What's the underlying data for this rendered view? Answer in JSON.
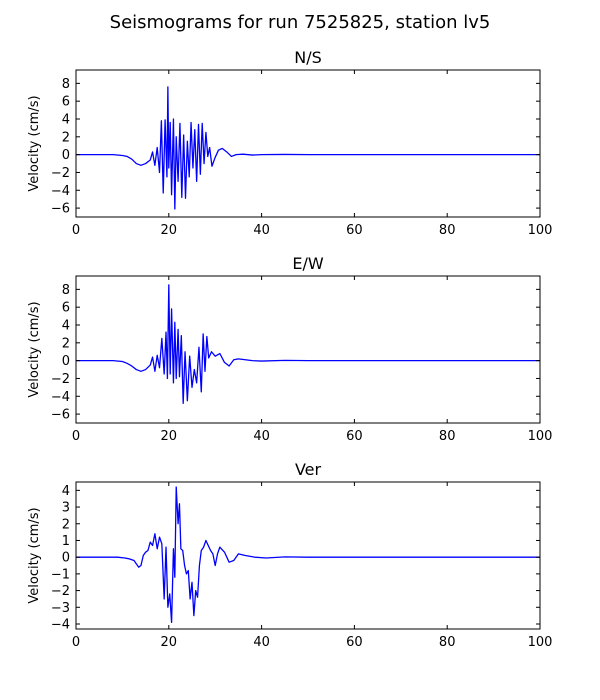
{
  "figure": {
    "suptitle": "Seismograms for run 7525825, station lv5"
  },
  "style": {
    "line_color": "#0000ff",
    "axis_color": "#000000",
    "background": "#ffffff"
  },
  "chart_data": [
    {
      "type": "line",
      "title": "N/S",
      "xlabel": "",
      "ylabel": "Velocity (cm/s)",
      "xlim": [
        0,
        100
      ],
      "ylim": [
        -7,
        9.5
      ],
      "xticks": [
        0,
        20,
        40,
        60,
        80,
        100
      ],
      "yticks": [
        -6,
        -4,
        -2,
        0,
        2,
        4,
        6,
        8
      ],
      "grid": false,
      "series": [
        {
          "x": [
            0,
            8,
            10,
            11,
            12,
            13,
            14,
            15,
            16,
            16.5,
            17,
            17.5,
            18,
            18.4,
            18.8,
            19.2,
            19.6,
            19.8,
            20.0,
            20.3,
            20.6,
            21.0,
            21.3,
            21.6,
            22.0,
            22.4,
            22.8,
            23.2,
            23.6,
            24.0,
            24.4,
            24.8,
            25.2,
            25.6,
            26.0,
            26.4,
            26.8,
            27.2,
            27.6,
            28.0,
            28.4,
            28.8,
            29.3,
            30.0,
            30.7,
            31.5,
            32.5,
            33.5,
            34.5,
            36,
            38,
            40,
            45,
            50,
            100
          ],
          "y": [
            0,
            0,
            -0.1,
            -0.2,
            -0.5,
            -1.0,
            -1.2,
            -1.0,
            -0.6,
            0.3,
            -1.2,
            0.8,
            -2.0,
            3.8,
            -4.3,
            3.9,
            -2.5,
            7.6,
            -1.5,
            3.6,
            -4.5,
            4.0,
            -6.1,
            2.0,
            -3.0,
            3.5,
            -4.8,
            2.2,
            -4.9,
            1.5,
            -2.5,
            3.6,
            -1.5,
            2.8,
            -3.0,
            3.4,
            -2.2,
            3.5,
            -1.0,
            2.5,
            -0.2,
            0.8,
            -1.3,
            -0.3,
            0.5,
            0.7,
            0.3,
            -0.2,
            0,
            0.05,
            -0.05,
            0,
            0.02,
            0,
            0
          ]
        }
      ]
    },
    {
      "type": "line",
      "title": "E/W",
      "xlabel": "",
      "ylabel": "Velocity (cm/s)",
      "xlim": [
        0,
        100
      ],
      "ylim": [
        -7,
        9.5
      ],
      "xticks": [
        0,
        20,
        40,
        60,
        80,
        100
      ],
      "yticks": [
        -6,
        -4,
        -2,
        0,
        2,
        4,
        6,
        8
      ],
      "grid": false,
      "series": [
        {
          "x": [
            0,
            8,
            10,
            11,
            12,
            13,
            14,
            15,
            16,
            16.5,
            17,
            17.5,
            18,
            18.5,
            19.0,
            19.4,
            19.7,
            20.0,
            20.3,
            20.6,
            21.0,
            21.3,
            21.6,
            22.0,
            22.3,
            22.7,
            23.1,
            23.5,
            24.0,
            24.5,
            25.0,
            25.5,
            26.0,
            26.5,
            27.0,
            27.4,
            27.8,
            28.2,
            28.6,
            29.2,
            30.0,
            31.0,
            32.0,
            33.0,
            34.0,
            35.0,
            36.5,
            38,
            40,
            45,
            50,
            100
          ],
          "y": [
            0,
            0,
            -0.1,
            -0.3,
            -0.6,
            -1.0,
            -1.2,
            -1.0,
            -0.5,
            0.4,
            -1.2,
            0.6,
            -0.8,
            2.5,
            -1.5,
            3.2,
            -2.0,
            8.5,
            -1.5,
            5.8,
            -2.5,
            4.3,
            -2.0,
            3.5,
            -1.8,
            2.8,
            -4.8,
            1.0,
            -4.5,
            0.5,
            -3.0,
            -1.0,
            -2.5,
            1.5,
            -3.5,
            3.0,
            -1.2,
            2.7,
            0.3,
            1.0,
            0.5,
            0.8,
            -0.2,
            -0.6,
            0.1,
            0.2,
            0.1,
            0,
            -0.05,
            0.03,
            0,
            0
          ]
        }
      ]
    },
    {
      "type": "line",
      "title": "Ver",
      "xlabel": "",
      "ylabel": "Velocity (cm/s)",
      "xlim": [
        0,
        100
      ],
      "ylim": [
        -4.3,
        4.5
      ],
      "xticks": [
        0,
        20,
        40,
        60,
        80,
        100
      ],
      "yticks": [
        -4,
        -3,
        -2,
        -1,
        0,
        1,
        2,
        3,
        4
      ],
      "grid": false,
      "series": [
        {
          "x": [
            0,
            9,
            10.5,
            11.5,
            12.5,
            13.5,
            14,
            14.5,
            15,
            15.5,
            16,
            16.5,
            17,
            17.5,
            18.0,
            18.5,
            19.0,
            19.4,
            19.8,
            20.2,
            20.6,
            21.0,
            21.3,
            21.6,
            22.0,
            22.3,
            22.6,
            23.0,
            23.4,
            23.8,
            24.2,
            24.6,
            25.0,
            25.4,
            25.8,
            26.2,
            26.6,
            27.0,
            27.5,
            28.0,
            28.5,
            29.0,
            29.5,
            30.0,
            30.5,
            31.0,
            32.0,
            33.0,
            34.0,
            35.0,
            36.5,
            38.5,
            41,
            45,
            50,
            100
          ],
          "y": [
            0,
            0,
            -0.05,
            -0.1,
            -0.2,
            -0.6,
            -0.5,
            0.1,
            0.3,
            0.4,
            0.9,
            0.7,
            1.4,
            0.5,
            1.2,
            0.8,
            -2.5,
            0.6,
            -3.0,
            -2.2,
            -3.9,
            0.5,
            -1.2,
            4.2,
            2.0,
            3.2,
            0.5,
            0.4,
            -0.5,
            -1.0,
            -0.8,
            -2.5,
            -1.5,
            -3.5,
            -2.0,
            -2.4,
            -0.5,
            0.4,
            0.6,
            1.0,
            0.7,
            0.4,
            0.2,
            -0.5,
            0.2,
            0.6,
            0.3,
            -0.3,
            -0.2,
            0.2,
            0.1,
            0,
            -0.05,
            0.02,
            0,
            0
          ]
        }
      ]
    }
  ]
}
